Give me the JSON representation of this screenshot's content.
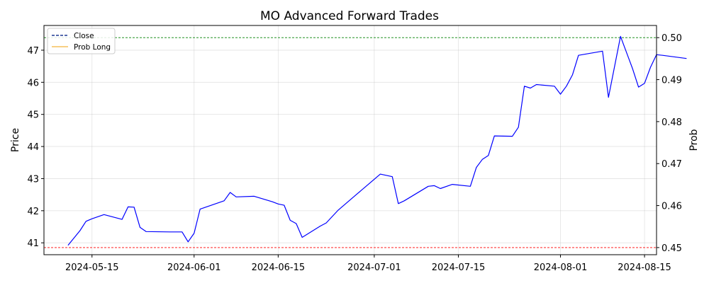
{
  "chart_data": {
    "type": "line",
    "title": "MO Advanced Forward Trades",
    "ylabel": "Price",
    "y2label": "Prob",
    "xlim": [
      "2024-05-07",
      "2024-08-17"
    ],
    "ylim": [
      40.63,
      47.77
    ],
    "y2lim": [
      0.4483,
      0.5029
    ],
    "x_ticks": [
      {
        "label": "2024-05-15",
        "date": "2024-05-15"
      },
      {
        "label": "2024-06-01",
        "date": "2024-06-01"
      },
      {
        "label": "2024-06-15",
        "date": "2024-06-15"
      },
      {
        "label": "2024-07-01",
        "date": "2024-07-01"
      },
      {
        "label": "2024-07-15",
        "date": "2024-07-15"
      },
      {
        "label": "2024-08-01",
        "date": "2024-08-01"
      },
      {
        "label": "2024-08-15",
        "date": "2024-08-15"
      }
    ],
    "y_ticks": [
      41,
      42,
      43,
      44,
      45,
      46,
      47
    ],
    "y_tick_labels": [
      "41",
      "42",
      "43",
      "44",
      "45",
      "46",
      "47"
    ],
    "y2_ticks": [
      0.45,
      0.46,
      0.47,
      0.48,
      0.49,
      0.5
    ],
    "y2_tick_labels": [
      "0.45",
      "0.46",
      "0.47",
      "0.48",
      "0.49",
      "0.50"
    ],
    "grid": true,
    "legend_position": "upper-left",
    "legend": [
      {
        "label": "Close",
        "color": "#1f3a93",
        "style": "dashed"
      },
      {
        "label": "Prob Long",
        "color": "#f5c15c",
        "style": "solid"
      }
    ],
    "series": [
      {
        "name": "Close",
        "color": "#0000ff",
        "axis": "left",
        "points": [
          [
            "2024-05-11",
            40.92
          ],
          [
            "2024-05-13",
            41.38
          ],
          [
            "2024-05-14",
            41.67
          ],
          [
            "2024-05-15",
            41.75
          ],
          [
            "2024-05-17",
            41.88
          ],
          [
            "2024-05-20",
            41.73
          ],
          [
            "2024-05-21",
            42.12
          ],
          [
            "2024-05-22",
            42.11
          ],
          [
            "2024-05-23",
            41.48
          ],
          [
            "2024-05-24",
            41.35
          ],
          [
            "2024-05-28",
            41.34
          ],
          [
            "2024-05-30",
            41.34
          ],
          [
            "2024-05-31",
            41.03
          ],
          [
            "2024-06-01",
            41.3
          ],
          [
            "2024-06-02",
            42.05
          ],
          [
            "2024-06-06",
            42.31
          ],
          [
            "2024-06-07",
            42.57
          ],
          [
            "2024-06-08",
            42.43
          ],
          [
            "2024-06-11",
            42.45
          ],
          [
            "2024-06-14",
            42.28
          ],
          [
            "2024-06-15",
            42.21
          ],
          [
            "2024-06-16",
            42.17
          ],
          [
            "2024-06-17",
            41.7
          ],
          [
            "2024-06-18",
            41.6
          ],
          [
            "2024-06-19",
            41.17
          ],
          [
            "2024-06-22",
            41.52
          ],
          [
            "2024-06-23",
            41.62
          ],
          [
            "2024-06-25",
            42.02
          ],
          [
            "2024-06-28",
            42.5
          ],
          [
            "2024-07-02",
            43.14
          ],
          [
            "2024-07-04",
            43.06
          ],
          [
            "2024-07-05",
            42.22
          ],
          [
            "2024-07-06",
            42.31
          ],
          [
            "2024-07-10",
            42.76
          ],
          [
            "2024-07-11",
            42.78
          ],
          [
            "2024-07-12",
            42.69
          ],
          [
            "2024-07-14",
            42.82
          ],
          [
            "2024-07-17",
            42.76
          ],
          [
            "2024-07-18",
            43.35
          ],
          [
            "2024-07-19",
            43.6
          ],
          [
            "2024-07-20",
            43.72
          ],
          [
            "2024-07-21",
            44.33
          ],
          [
            "2024-07-24",
            44.32
          ],
          [
            "2024-07-25",
            44.6
          ],
          [
            "2024-07-26",
            45.88
          ],
          [
            "2024-07-27",
            45.82
          ],
          [
            "2024-07-28",
            45.93
          ],
          [
            "2024-07-31",
            45.88
          ],
          [
            "2024-08-01",
            45.63
          ],
          [
            "2024-08-02",
            45.88
          ],
          [
            "2024-08-03",
            46.23
          ],
          [
            "2024-08-04",
            46.84
          ],
          [
            "2024-08-08",
            46.97
          ],
          [
            "2024-08-09",
            45.53
          ],
          [
            "2024-08-11",
            47.43
          ],
          [
            "2024-08-13",
            46.43
          ],
          [
            "2024-08-14",
            45.85
          ],
          [
            "2024-08-15",
            45.97
          ],
          [
            "2024-08-16",
            46.47
          ],
          [
            "2024-08-17",
            46.86
          ],
          [
            "2024-08-18",
            46.84
          ],
          [
            "2024-08-22",
            46.74
          ]
        ]
      }
    ],
    "reference_lines": [
      {
        "axis": "right",
        "value": 0.5,
        "color": "#008000",
        "style": "dashed"
      },
      {
        "axis": "right",
        "value": 0.45,
        "color": "#ff0000",
        "style": "dashed"
      }
    ]
  }
}
